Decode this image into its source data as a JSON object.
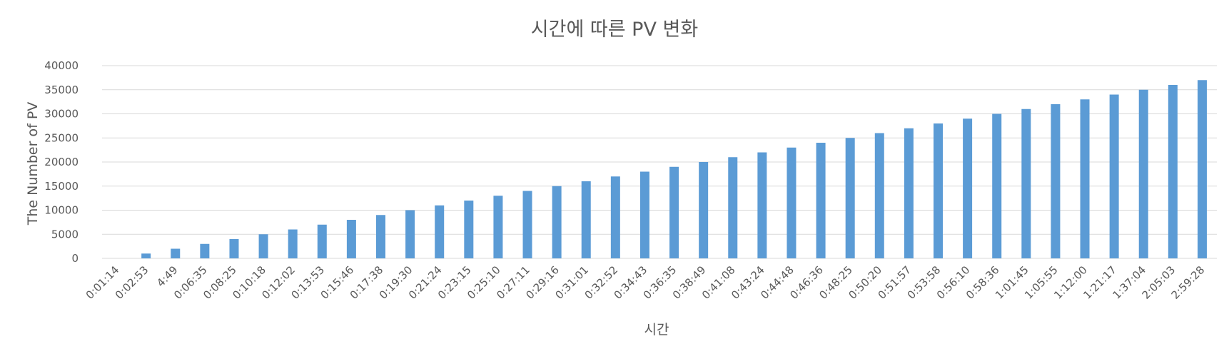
{
  "chart_data": {
    "type": "bar",
    "title": "시간에 따른 PV 변화",
    "xlabel": "시간",
    "ylabel": "The Number of PV",
    "ylim": [
      0,
      40000
    ],
    "yticks": [
      0,
      5000,
      10000,
      15000,
      20000,
      25000,
      30000,
      35000,
      40000
    ],
    "grid": true,
    "legend": "none",
    "bar_color": "#5b9bd5",
    "categories": [
      "0:01:14",
      "0:02:53",
      "4:49",
      "0:06:35",
      "0:08:25",
      "0:10:18",
      "0:12:02",
      "0:13:53",
      "0:15:46",
      "0:17:38",
      "0:19:30",
      "0:21:24",
      "0:23:15",
      "0:25:10",
      "0:27:11",
      "0:29:16",
      "0:31:01",
      "0:32:52",
      "0:34:43",
      "0:36:35",
      "0:38:49",
      "0:41:08",
      "0:43:24",
      "0:44:48",
      "0:46:36",
      "0:48:25",
      "0:50:20",
      "0:51:57",
      "0:53:58",
      "0:56:10",
      "0:58:36",
      "1:01:45",
      "1:05:55",
      "1:12:00",
      "1:21:17",
      "1:37:04",
      "2:05:03",
      "2:59:28"
    ],
    "values": [
      0,
      1000,
      2000,
      3000,
      4000,
      5000,
      6000,
      7000,
      8000,
      9000,
      10000,
      11000,
      12000,
      13000,
      14000,
      15000,
      16000,
      17000,
      18000,
      19000,
      20000,
      21000,
      22000,
      23000,
      24000,
      25000,
      26000,
      27000,
      28000,
      29000,
      30000,
      31000,
      32000,
      33000,
      34000,
      35000,
      36000,
      37000
    ]
  }
}
